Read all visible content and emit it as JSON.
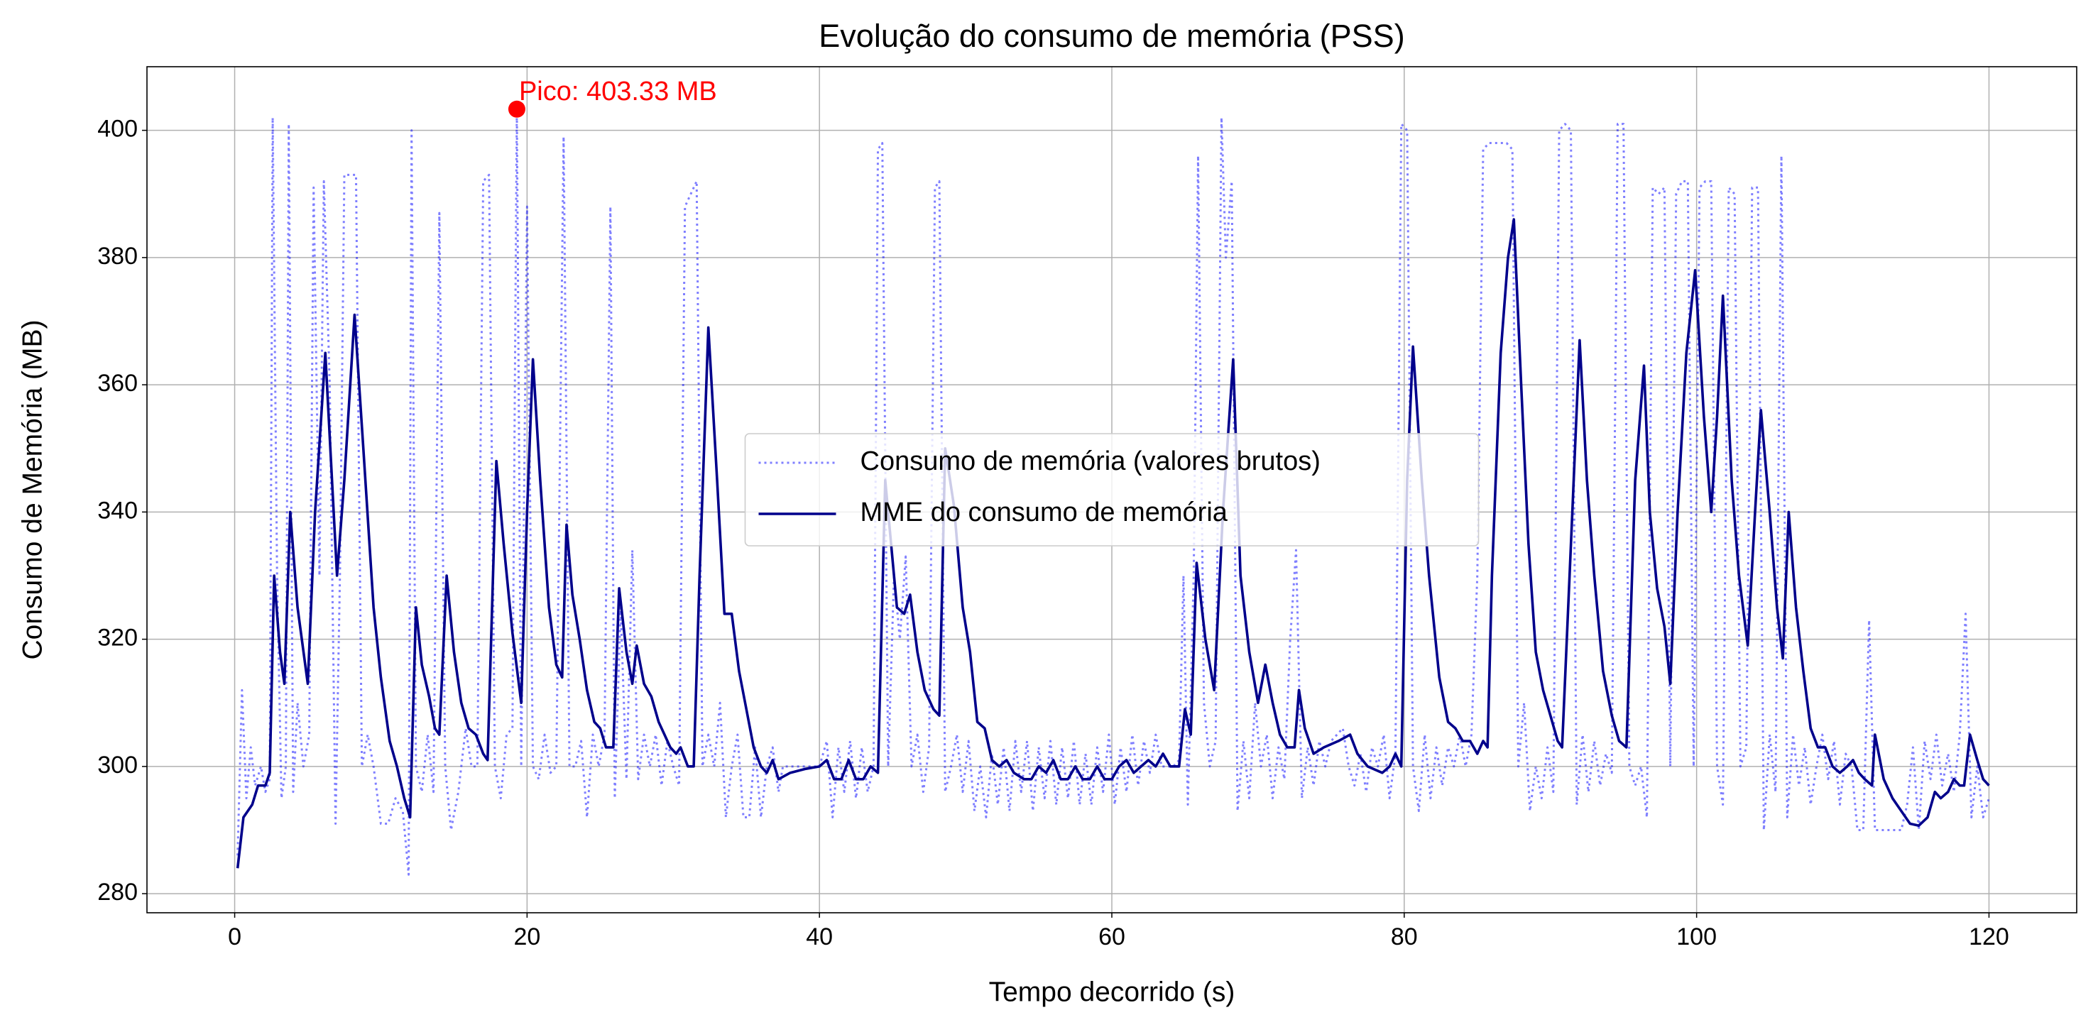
{
  "chart_data": {
    "type": "line",
    "title": "Evolução do consumo de memória (PSS)",
    "xlabel": "Tempo decorrido (s)",
    "ylabel": "Consumo de Memória (MB)",
    "xlim": [
      -6,
      126
    ],
    "ylim": [
      277,
      410
    ],
    "xticks": [
      0,
      20,
      40,
      60,
      80,
      100,
      120
    ],
    "yticks": [
      280,
      300,
      320,
      340,
      360,
      380,
      400
    ],
    "grid": true,
    "legend": "center",
    "series": [
      {
        "name": "Consumo de memória (valores brutos)",
        "color": "#0000ff",
        "alpha": 0.5,
        "linestyle": "dotted",
        "x": [
          0.2,
          0.5,
          0.8,
          1.1,
          1.4,
          1.8,
          2.1,
          2.4,
          2.6,
          2.9,
          3.2,
          3.5,
          3.7,
          4.0,
          4.3,
          4.7,
          5.1,
          5.4,
          5.8,
          6.1,
          6.5,
          6.9,
          7.2,
          7.5,
          8.0,
          8.3,
          8.7,
          9.1,
          9.5,
          10.0,
          10.5,
          11.0,
          11.5,
          11.9,
          12.1,
          12.4,
          12.8,
          13.2,
          13.6,
          14.0,
          14.4,
          14.8,
          15.3,
          15.8,
          16.2,
          16.6,
          17.0,
          17.4,
          17.8,
          18.2,
          18.6,
          19.0,
          19.3,
          19.6,
          20.0,
          20.4,
          20.8,
          21.2,
          21.6,
          22.0,
          22.5,
          22.9,
          23.3,
          23.7,
          24.1,
          24.5,
          24.9,
          25.3,
          25.7,
          26.0,
          26.4,
          26.8,
          27.2,
          27.6,
          28.0,
          28.4,
          28.8,
          29.2,
          29.6,
          30.0,
          30.4,
          30.8,
          31.2,
          31.6,
          32.0,
          32.4,
          32.8,
          33.2,
          33.6,
          34.0,
          34.4,
          34.8,
          35.2,
          35.6,
          36.0,
          36.4,
          36.8,
          37.2,
          37.5,
          40.0,
          40.5,
          40.9,
          41.3,
          41.7,
          42.1,
          42.5,
          42.9,
          43.3,
          43.7,
          44.0,
          44.3,
          44.7,
          45.1,
          45.5,
          45.9,
          46.3,
          46.7,
          47.1,
          47.5,
          47.9,
          48.2,
          48.6,
          49.0,
          49.4,
          49.8,
          50.2,
          50.6,
          51.0,
          51.4,
          51.8,
          52.2,
          52.6,
          53.0,
          53.4,
          53.8,
          54.2,
          54.6,
          55.0,
          55.4,
          55.8,
          56.2,
          56.6,
          57.0,
          57.4,
          57.8,
          58.2,
          58.6,
          59.0,
          59.4,
          59.8,
          60.2,
          60.6,
          61.0,
          61.4,
          61.8,
          62.2,
          62.6,
          63.0,
          63.4,
          63.8,
          64.2,
          64.6,
          64.9,
          65.2,
          65.6,
          65.9,
          66.3,
          66.7,
          67.1,
          67.5,
          67.8,
          68.2,
          68.6,
          69.0,
          69.4,
          69.8,
          70.2,
          70.6,
          71.0,
          71.4,
          71.8,
          72.2,
          72.6,
          73.0,
          73.4,
          73.8,
          74.2,
          74.6,
          75.0,
          75.4,
          75.8,
          76.2,
          76.6,
          77.0,
          77.4,
          77.8,
          78.2,
          78.6,
          79.0,
          79.4,
          79.8,
          80.2,
          80.6,
          81.0,
          81.4,
          81.8,
          82.2,
          82.6,
          83.0,
          83.4,
          83.8,
          84.2,
          84.6,
          85.0,
          85.4,
          85.8,
          86.4,
          87.0,
          87.4,
          87.8,
          88.2,
          88.6,
          89.0,
          89.4,
          89.8,
          90.2,
          90.6,
          91.0,
          91.4,
          91.8,
          92.2,
          92.6,
          93.0,
          93.4,
          93.8,
          94.2,
          94.6,
          95.0,
          95.4,
          95.8,
          96.2,
          96.6,
          97.0,
          97.4,
          97.8,
          98.2,
          98.6,
          99.0,
          99.4,
          99.8,
          100.2,
          100.6,
          101.0,
          101.4,
          101.8,
          102.2,
          102.6,
          103.0,
          103.4,
          103.8,
          104.2,
          104.6,
          105.0,
          105.4,
          105.8,
          106.2,
          106.6,
          107.0,
          107.4,
          107.8,
          108.2,
          108.6,
          109.0,
          109.4,
          109.8,
          110.2,
          110.6,
          111.0,
          111.4,
          111.8,
          112.2,
          112.6,
          113.0,
          113.4,
          114.0,
          114.4,
          114.8,
          115.2,
          115.6,
          116.0,
          116.4,
          116.8,
          117.2,
          117.6,
          118.0,
          118.4,
          118.8,
          119.2,
          119.6,
          120.0
        ],
        "values": [
          286,
          312,
          295,
          303,
          297,
          300,
          296,
          298,
          402,
          330,
          295,
          300,
          401,
          296,
          310,
          300,
          305,
          391,
          330,
          392,
          360,
          291,
          330,
          393,
          393,
          393,
          300,
          305,
          300,
          291,
          291,
          295,
          293,
          283,
          400,
          300,
          296,
          305,
          296,
          387,
          300,
          290,
          296,
          306,
          300,
          300,
          392,
          393,
          300,
          295,
          305,
          306,
          403.33,
          300,
          388,
          300,
          298,
          305,
          299,
          300,
          399,
          300,
          300,
          304,
          292,
          305,
          300,
          305,
          388,
          295,
          325,
          298,
          334,
          298,
          305,
          300,
          305,
          297,
          304,
          300,
          297,
          388,
          390,
          392,
          300,
          305,
          300,
          310,
          292,
          300,
          305,
          292,
          292,
          303,
          292,
          300,
          303,
          296,
          300,
          300,
          304,
          292,
          303,
          296,
          304,
          295,
          303,
          296,
          300,
          397,
          398,
          300,
          330,
          320,
          333,
          300,
          305,
          296,
          303,
          391,
          392,
          296,
          300,
          305,
          296,
          304,
          293,
          300,
          292,
          302,
          294,
          303,
          293,
          304,
          296,
          304,
          293,
          303,
          295,
          304,
          294,
          303,
          295,
          304,
          294,
          302,
          294,
          303,
          296,
          305,
          294,
          303,
          296,
          305,
          297,
          304,
          299,
          305,
          300,
          300,
          300,
          301,
          330,
          294,
          330,
          396,
          310,
          300,
          304,
          402,
          380,
          392,
          293,
          304,
          295,
          310,
          300,
          305,
          295,
          303,
          298,
          320,
          334,
          295,
          303,
          297,
          304,
          300,
          304,
          305,
          306,
          300,
          297,
          302,
          296,
          303,
          300,
          305,
          295,
          302,
          401,
          400,
          300,
          293,
          305,
          295,
          303,
          297,
          303,
          300,
          305,
          300,
          305,
          330,
          397,
          398,
          398,
          398,
          397,
          300,
          310,
          293,
          300,
          295,
          303,
          296,
          400,
          401,
          400,
          294,
          305,
          296,
          304,
          297,
          302,
          299,
          401,
          401,
          300,
          297,
          300,
          292,
          391,
          390,
          391,
          300,
          390,
          392,
          392,
          300,
          391,
          392,
          392,
          300,
          294,
          391,
          390,
          300,
          303,
          391,
          391,
          290,
          305,
          296,
          396,
          292,
          305,
          297,
          303,
          294,
          300,
          305,
          298,
          304,
          294,
          302,
          300,
          290,
          290,
          323,
          290,
          290,
          290,
          290,
          290,
          294,
          303,
          290,
          304,
          298,
          305,
          297,
          302,
          296,
          305,
          324,
          292,
          300,
          292,
          295
        ]
      },
      {
        "name": "MME do consumo de memória",
        "color": "#00008b",
        "linestyle": "solid",
        "x": [
          0.2,
          0.6,
          1.2,
          1.6,
          2.1,
          2.4,
          2.7,
          3.1,
          3.4,
          3.8,
          4.3,
          5.0,
          5.5,
          6.2,
          7.0,
          7.5,
          8.2,
          8.8,
          9.5,
          10.0,
          10.6,
          11.1,
          11.6,
          12.0,
          12.4,
          12.8,
          13.3,
          13.7,
          14.0,
          14.5,
          15.0,
          15.5,
          16.0,
          16.5,
          17.0,
          17.3,
          17.9,
          18.4,
          19.0,
          19.6,
          20.0,
          20.4,
          20.9,
          21.5,
          22.0,
          22.4,
          22.7,
          23.1,
          23.6,
          24.1,
          24.6,
          25.0,
          25.4,
          25.9,
          26.3,
          26.8,
          27.2,
          27.5,
          28.0,
          28.5,
          29.0,
          29.4,
          29.8,
          30.2,
          30.5,
          31.0,
          31.4,
          31.8,
          32.4,
          33.0,
          33.5,
          34.0,
          34.5,
          35.0,
          35.5,
          36.0,
          36.4,
          36.8,
          37.2,
          38,
          39,
          40,
          40.5,
          41,
          41.5,
          42,
          42.5,
          43,
          43.5,
          44,
          44.5,
          45.3,
          45.8,
          46.2,
          46.7,
          47.2,
          47.8,
          48.2,
          48.6,
          49.2,
          49.8,
          50.3,
          50.8,
          51.3,
          51.8,
          52.3,
          52.8,
          53.3,
          54,
          54.5,
          55,
          55.5,
          56,
          56.5,
          57,
          57.5,
          58,
          58.5,
          59,
          59.5,
          60,
          60.5,
          61,
          61.5,
          62,
          62.5,
          63,
          63.5,
          64,
          64.6,
          65,
          65.4,
          65.8,
          66.4,
          67,
          67.6,
          68.3,
          68.8,
          69.4,
          70,
          70.5,
          71,
          71.5,
          72,
          72.5,
          72.8,
          73.2,
          73.8,
          74.5,
          75.5,
          76.3,
          76.8,
          77.5,
          78.5,
          79,
          79.4,
          79.8,
          80.2,
          80.6,
          81.2,
          81.7,
          82.4,
          83,
          83.5,
          84,
          84.5,
          85,
          85.4,
          85.7,
          86,
          86.6,
          87.1,
          87.5,
          88,
          88.5,
          89,
          89.5,
          90,
          90.5,
          90.8,
          91.5,
          92,
          92.5,
          93,
          93.6,
          94.2,
          94.7,
          95.2,
          95.8,
          96.4,
          96.8,
          97.3,
          97.8,
          98.2,
          98.7,
          99.3,
          99.9,
          100.5,
          101,
          101.4,
          101.8,
          102.4,
          102.9,
          103.5,
          104,
          104.4,
          105,
          105.5,
          105.9,
          106.3,
          106.8,
          107.3,
          107.8,
          108.3,
          108.8,
          109.3,
          109.8,
          110.3,
          110.7,
          111.1,
          111.5,
          112,
          112.2,
          112.8,
          113.4,
          114,
          114.6,
          115.2,
          115.8,
          116.3,
          116.7,
          117.2,
          117.6,
          118,
          118.3,
          118.7,
          119.2,
          119.6,
          120
        ],
        "values": [
          284,
          292,
          294,
          297,
          297,
          299,
          330,
          318,
          313,
          340,
          325,
          313,
          340,
          365,
          330,
          345,
          371,
          350,
          325,
          314,
          304,
          300,
          295,
          292,
          325,
          316,
          311,
          306,
          305,
          330,
          318,
          310,
          306,
          305,
          302,
          301,
          348,
          335,
          321,
          310,
          340,
          364,
          345,
          325,
          316,
          314,
          338,
          327,
          320,
          312,
          307,
          306,
          303,
          303,
          328,
          318,
          313,
          319,
          313,
          311,
          307,
          305,
          303,
          302,
          303,
          300,
          300,
          330,
          369,
          345,
          324,
          324,
          315,
          309,
          303,
          300,
          299,
          301,
          298,
          299,
          299.6,
          300,
          301,
          298,
          298,
          301,
          298,
          298,
          300,
          299,
          345,
          325,
          324,
          327,
          318,
          312,
          309,
          308,
          350,
          341,
          325,
          318,
          307,
          306,
          301,
          300,
          301,
          299,
          298,
          298,
          300,
          299,
          301,
          298,
          298,
          300,
          298,
          298,
          300,
          298,
          298,
          300,
          301,
          299,
          300,
          301,
          300,
          302,
          300,
          300,
          309,
          305,
          332,
          320,
          312,
          340,
          364,
          330,
          318,
          310,
          316,
          310,
          305,
          303,
          303,
          312,
          306,
          302,
          303,
          304,
          305,
          302,
          300,
          299,
          300,
          302,
          300,
          345,
          366,
          345,
          330,
          314,
          307,
          306,
          304,
          304,
          302,
          304,
          303,
          330,
          365,
          380,
          386,
          360,
          335,
          318,
          312,
          308,
          304,
          303,
          340,
          367,
          345,
          330,
          315,
          308,
          304,
          303,
          345,
          363,
          340,
          328,
          322,
          313,
          340,
          365,
          378,
          355,
          340,
          355,
          374,
          345,
          330,
          319,
          340,
          356,
          340,
          325,
          317,
          340,
          325,
          315,
          306,
          303,
          303,
          300,
          299,
          300,
          301,
          299,
          298,
          297,
          305,
          298,
          295,
          293,
          291,
          290.7,
          292,
          296,
          295,
          296,
          298,
          297,
          297,
          305,
          301,
          298,
          297
        ]
      }
    ],
    "annotation": {
      "text": "Pico: 403.33 MB",
      "x": 19.3,
      "y": 403.33,
      "color": "#ff0000"
    }
  }
}
